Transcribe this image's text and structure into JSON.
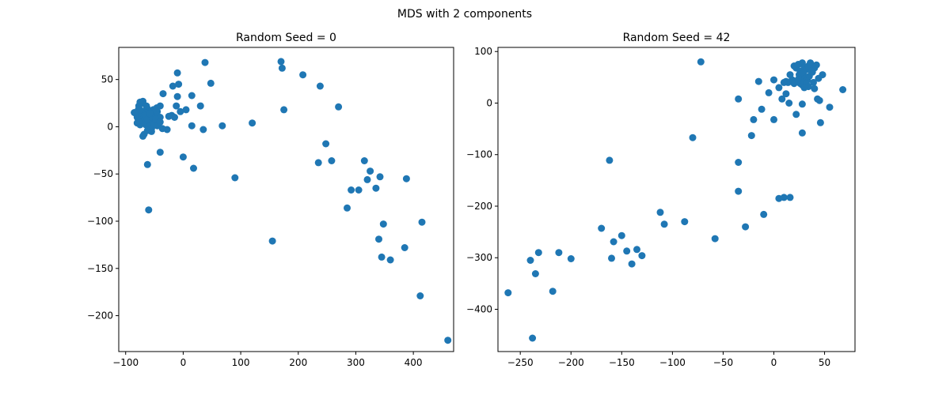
{
  "figure": {
    "suptitle": "MDS with 2 components",
    "marker_color": "#1f77b4"
  },
  "chart_data": [
    {
      "type": "scatter",
      "title": "Random Seed = 0",
      "xlabel": "",
      "ylabel": "",
      "xlim": [
        -112,
        470
      ],
      "ylim": [
        -238,
        84
      ],
      "xticks": [
        -100,
        0,
        100,
        200,
        300,
        400
      ],
      "yticks": [
        -200,
        -150,
        -100,
        -50,
        0,
        50
      ],
      "grid": false,
      "x": [
        -82,
        -80,
        -78,
        -77,
        -75,
        -72,
        -70,
        -68,
        -65,
        -63,
        -60,
        -58,
        -55,
        -52,
        -50,
        -48,
        -45,
        -42,
        -40,
        -80,
        -75,
        -70,
        -65,
        -60,
        -55,
        -50,
        -45,
        -78,
        -72,
        -66,
        -62,
        -56,
        -52,
        -46,
        -70,
        -64,
        -58,
        -54,
        -48,
        -75,
        -68,
        -62,
        -36,
        -40,
        -28,
        -20,
        -15,
        -10,
        -5,
        -8,
        -12,
        -18,
        -25,
        -35,
        -40,
        -55,
        -62,
        -70,
        -85,
        -75,
        -58,
        -40,
        0,
        15,
        30,
        38,
        48,
        15,
        35,
        68,
        120,
        90,
        155,
        170,
        172,
        175,
        208,
        238,
        248,
        270,
        235,
        258,
        285,
        292,
        305,
        315,
        320,
        325,
        335,
        342,
        348,
        340,
        345,
        360,
        385,
        388,
        415,
        412,
        460,
        -10,
        5,
        18,
        -60
      ],
      "y": [
        14,
        10,
        18,
        22,
        8,
        12,
        25,
        16,
        6,
        20,
        10,
        14,
        5,
        18,
        12,
        8,
        16,
        4,
        10,
        4,
        2,
        6,
        2,
        0,
        -2,
        3,
        1,
        6,
        14,
        12,
        8,
        14,
        18,
        20,
        27,
        22,
        15,
        10,
        8,
        18,
        -8,
        -4,
        -2,
        5,
        -3,
        12,
        10,
        32,
        16,
        45,
        22,
        43,
        11,
        35,
        22,
        -5,
        -40,
        -10,
        15,
        26,
        14,
        -27,
        -32,
        33,
        22,
        68,
        46,
        1,
        -3,
        1,
        4,
        -54,
        -121,
        69,
        62,
        18,
        55,
        43,
        -18,
        21,
        -38,
        -36,
        -86,
        -67,
        -67,
        -36,
        -56,
        -47,
        -65,
        -53,
        -103,
        -119,
        -138,
        -141,
        -128,
        -55,
        -101,
        -179,
        -226,
        57,
        18,
        -44,
        -88
      ]
    },
    {
      "type": "scatter",
      "title": "Random Seed = 42",
      "xlabel": "",
      "ylabel": "",
      "xlim": [
        -272,
        80
      ],
      "ylim": [
        -482,
        108
      ],
      "xticks": [
        -250,
        -200,
        -150,
        -100,
        -50,
        0,
        50
      ],
      "yticks": [
        -400,
        -300,
        -200,
        -100,
        0,
        100
      ],
      "grid": false,
      "x": [
        20,
        22,
        24,
        26,
        28,
        30,
        32,
        34,
        36,
        38,
        40,
        42,
        25,
        27,
        29,
        31,
        33,
        35,
        37,
        39,
        22,
        24,
        26,
        28,
        30,
        32,
        34,
        18,
        20,
        16,
        14,
        12,
        44,
        48,
        10,
        5,
        0,
        -5,
        -15,
        -12,
        0,
        8,
        12,
        15,
        22,
        28,
        30,
        40,
        43,
        45,
        55,
        68,
        46,
        28,
        5,
        -20,
        -22,
        -35,
        -72,
        -80,
        -162,
        -35,
        -35,
        -10,
        10,
        16,
        -28,
        -58,
        -88,
        -108,
        -112,
        -130,
        -135,
        -140,
        -145,
        -150,
        -158,
        -160,
        -170,
        -200,
        -212,
        -218,
        -232,
        -235,
        -240,
        -238,
        -262
      ],
      "y": [
        72,
        68,
        75,
        62,
        78,
        70,
        65,
        72,
        78,
        60,
        68,
        74,
        55,
        50,
        58,
        48,
        45,
        52,
        62,
        40,
        42,
        46,
        38,
        35,
        40,
        38,
        32,
        45,
        38,
        55,
        40,
        42,
        48,
        55,
        40,
        30,
        45,
        20,
        42,
        -12,
        -32,
        8,
        18,
        0,
        -22,
        -2,
        30,
        28,
        8,
        5,
        -8,
        26,
        -38,
        -58,
        -185,
        -32,
        -63,
        8,
        80,
        -67,
        -111,
        -115,
        -171,
        -216,
        -183,
        -183,
        -240,
        -263,
        -230,
        -235,
        -212,
        -296,
        -284,
        -312,
        -287,
        -257,
        -269,
        -301,
        -243,
        -302,
        -290,
        -365,
        -290,
        -331,
        -305,
        -456,
        -368
      ]
    }
  ]
}
